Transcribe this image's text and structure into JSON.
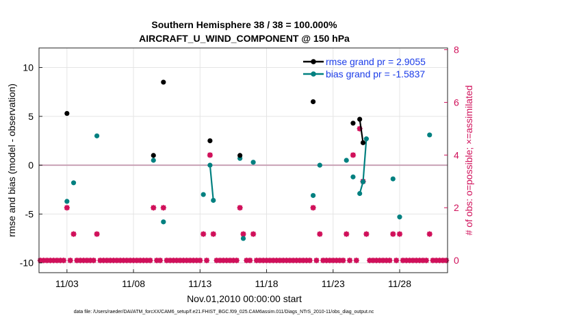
{
  "chart_data": {
    "type": "scatter",
    "title": [
      "Southern Hemisphere 38 / 38 = 100.000%",
      "AIRCRAFT_U_WIND_COMPONENT @ 150 hPa"
    ],
    "xlabel": "Nov.01,2010 00:00:00 start",
    "ylabel_left": "rmse and bias (model - observation)",
    "ylabel_right": "# of obs: o=possible; ×=assimilated",
    "xlim": [
      0.9,
      31.6
    ],
    "ylim_left": [
      -11,
      12
    ],
    "ylim_right": [
      -0.4666667,
      8.0666667
    ],
    "x_ticks": [
      3,
      8,
      13,
      18,
      23,
      28
    ],
    "x_tick_labels": [
      "11/03",
      "11/08",
      "11/13",
      "11/18",
      "11/23",
      "11/28"
    ],
    "y_ticks_left": [
      -10,
      -5,
      0,
      5,
      10
    ],
    "y_tick_labels_left": [
      "-10",
      "-5",
      "0",
      "5",
      "10"
    ],
    "y_ticks_right": [
      0,
      2,
      4,
      6,
      8
    ],
    "y_tick_labels_right": [
      "0",
      "2",
      "4",
      "6",
      "8"
    ],
    "zero_line": 0,
    "legend": [
      "rmse grand pr = 2.9055",
      "bias grand pr = -1.5837"
    ],
    "colors": {
      "rmse": "#000000",
      "bias": "#008080",
      "obs": "#d0105a",
      "zero": "#c8a0b4",
      "legend_text": "#1a3be8"
    },
    "series": [
      {
        "name": "rmse",
        "points": [
          [
            3.0,
            5.3
          ],
          [
            9.5,
            1.0
          ],
          [
            10.25,
            8.5
          ],
          [
            13.75,
            2.5
          ],
          [
            16.0,
            1.0
          ],
          [
            21.5,
            6.5
          ],
          [
            24.5,
            4.3
          ],
          [
            25.0,
            4.7
          ],
          [
            25.25,
            2.3
          ]
        ],
        "segments": [
          [
            [
              25.0,
              4.7
            ],
            [
              25.25,
              2.3
            ]
          ]
        ]
      },
      {
        "name": "bias",
        "points": [
          [
            3.0,
            -3.7
          ],
          [
            3.5,
            -1.8
          ],
          [
            5.25,
            3.0
          ],
          [
            9.5,
            0.5
          ],
          [
            10.25,
            -5.8
          ],
          [
            13.25,
            -3.0
          ],
          [
            13.75,
            0.0
          ],
          [
            14.0,
            -3.6
          ],
          [
            16.0,
            0.7
          ],
          [
            16.25,
            -7.5
          ],
          [
            17.0,
            0.3
          ],
          [
            21.5,
            -3.1
          ],
          [
            22.0,
            0.0
          ],
          [
            24.0,
            0.5
          ],
          [
            24.5,
            -1.2
          ],
          [
            25.0,
            -2.9
          ],
          [
            25.25,
            -1.7
          ],
          [
            25.5,
            2.7
          ],
          [
            27.5,
            -1.4
          ],
          [
            28.0,
            -5.3
          ],
          [
            30.25,
            3.1
          ]
        ],
        "segments": [
          [
            [
              13.75,
              0.0
            ],
            [
              14.0,
              -3.6
            ]
          ],
          [
            [
              25.0,
              -2.9
            ],
            [
              25.25,
              -1.7
            ],
            [
              25.5,
              2.7
            ]
          ]
        ]
      },
      {
        "name": "obs_count",
        "points_nonzero": [
          [
            3.0,
            2
          ],
          [
            3.5,
            1
          ],
          [
            5.25,
            1
          ],
          [
            9.5,
            2
          ],
          [
            10.25,
            2
          ],
          [
            13.25,
            1
          ],
          [
            13.75,
            4
          ],
          [
            14.0,
            1
          ],
          [
            16.0,
            2
          ],
          [
            16.25,
            1
          ],
          [
            17.0,
            1
          ],
          [
            21.5,
            2
          ],
          [
            22.0,
            1
          ],
          [
            24.0,
            1
          ],
          [
            24.5,
            4
          ],
          [
            25.0,
            5
          ],
          [
            25.25,
            3
          ],
          [
            25.5,
            1
          ],
          [
            27.5,
            1
          ],
          [
            28.0,
            1
          ],
          [
            30.25,
            1
          ]
        ],
        "zero_range": [
          1.0,
          31.5
        ],
        "zero_step": 0.25
      }
    ]
  },
  "footer": "data file: /Users/raeder/DAI/ATM_forcXX/CAM6_setup/f.e21.FHIST_BGC.f09_025.CAM6assim.011/Diags_NTrS_2010-11/obs_diag_output.nc"
}
